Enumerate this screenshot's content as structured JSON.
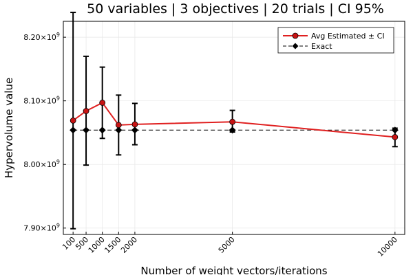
{
  "chart_data": {
    "type": "line",
    "title": "50 variables | 3 objectives | 20 trials | CI 95%",
    "xlabel": "Number of weight vectors/iterations",
    "ylabel": "Hypervolume value",
    "x": [
      100,
      500,
      1000,
      1500,
      2000,
      5000,
      10000
    ],
    "x_ticks": [
      "100",
      "500",
      "1000",
      "1500",
      "2000",
      "5000",
      "10000"
    ],
    "y_ticks": [
      {
        "value": 7.9,
        "label": "7.90×10",
        "exp": "9"
      },
      {
        "value": 8.0,
        "label": "8.00×10",
        "exp": "9"
      },
      {
        "value": 8.1,
        "label": "8.10×10",
        "exp": "9"
      },
      {
        "value": 8.2,
        "label": "8.20×10",
        "exp": "9"
      }
    ],
    "y_unit_scale": 1000000000,
    "ylim": [
      7.89,
      8.225
    ],
    "xlim": [
      -200,
      10300
    ],
    "grid": true,
    "legend_position": "top-right",
    "series": [
      {
        "name": "Avg Estimated ± CI",
        "color": "#e02020",
        "marker": "circle",
        "values": [
          8.069,
          8.084,
          8.097,
          8.062,
          8.063,
          8.067,
          8.043
        ],
        "ci_low": [
          7.899,
          7.999,
          8.041,
          8.015,
          8.031,
          8.051,
          8.028
        ],
        "ci_high": [
          8.239,
          8.17,
          8.153,
          8.109,
          8.096,
          8.085,
          8.057
        ]
      },
      {
        "name": "Exact",
        "color": "#000000",
        "marker": "diamond",
        "dash": "dashed",
        "values": [
          8.054,
          8.054,
          8.054,
          8.054,
          8.054,
          8.054,
          8.054
        ]
      }
    ]
  }
}
